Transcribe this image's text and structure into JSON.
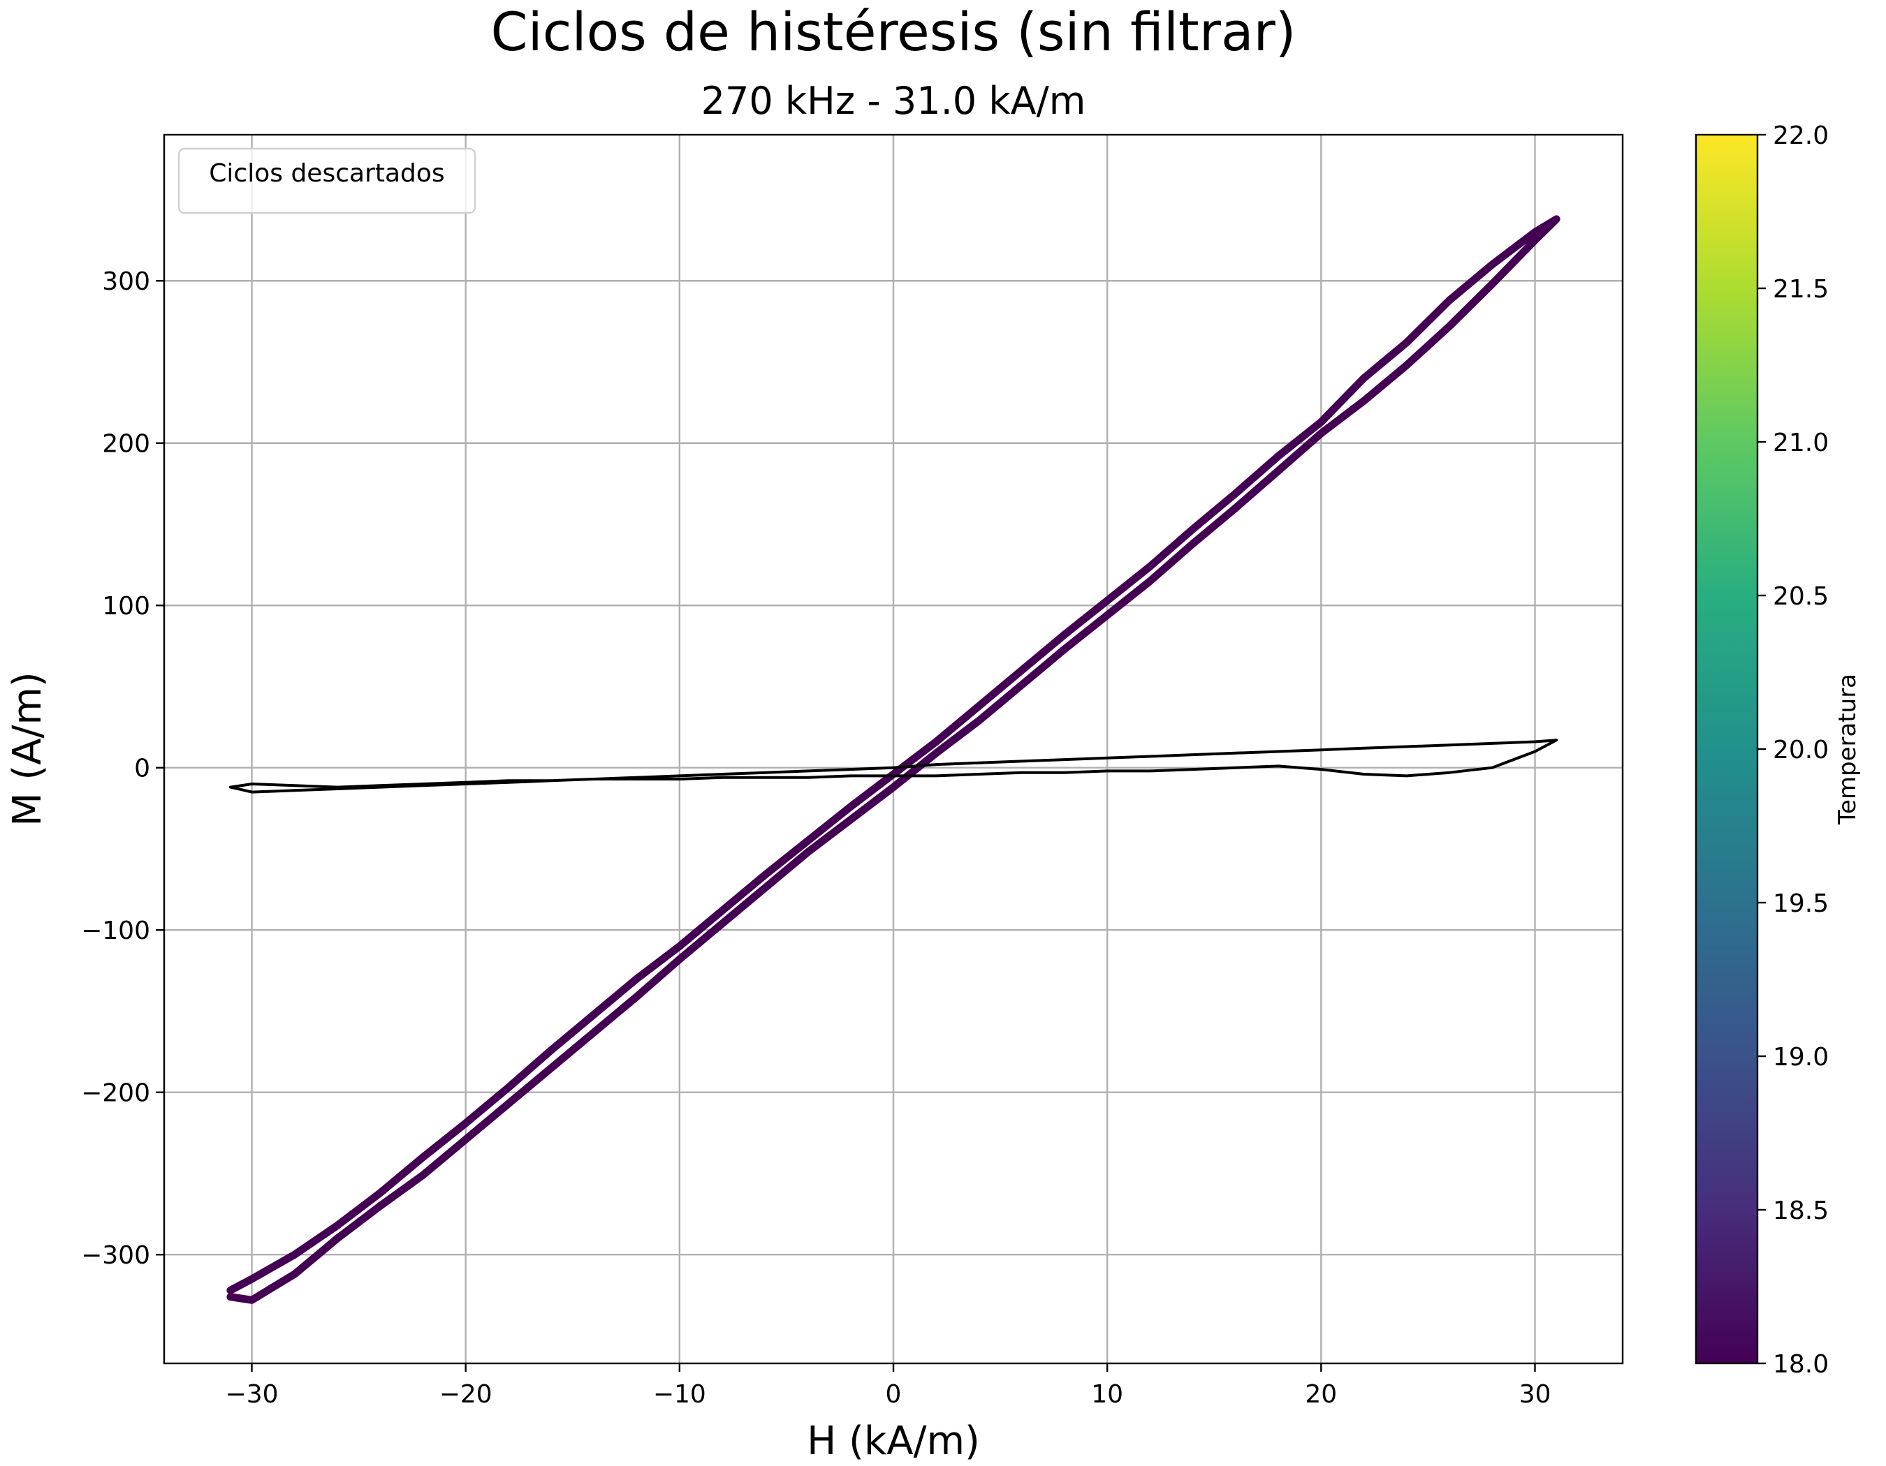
{
  "chart_data": {
    "type": "line",
    "title": "Ciclos de histéresis (sin filtrar)",
    "subtitle": "270 kHz - 31.0 kA/m",
    "xlabel": "H (kA/m)",
    "ylabel": "M (A/m)",
    "xlim": [
      -34.1,
      34.1
    ],
    "ylim": [
      -367,
      390
    ],
    "xticks": [
      -30,
      -20,
      -10,
      0,
      10,
      20,
      30
    ],
    "xtick_labels": [
      "−30",
      "−20",
      "−10",
      "0",
      "10",
      "20",
      "30"
    ],
    "yticks": [
      -300,
      -200,
      -100,
      0,
      100,
      200,
      300
    ],
    "ytick_labels": [
      "−300",
      "−200",
      "−100",
      "0",
      "100",
      "200",
      "300"
    ],
    "grid": true,
    "legend": {
      "placement": "upper-left",
      "title": "Ciclos descartados",
      "entries": []
    },
    "colorbar": {
      "label": "Temperatura",
      "colormap": "viridis",
      "range": [
        18.0,
        22.0
      ],
      "ticks": [
        18.0,
        18.5,
        19.0,
        19.5,
        20.0,
        20.5,
        21.0,
        21.5,
        22.0
      ],
      "tick_labels": [
        "18.0",
        "18.5",
        "19.0",
        "19.5",
        "20.0",
        "20.5",
        "21.0",
        "21.5",
        "22.0"
      ]
    },
    "series": [
      {
        "color": "#440154",
        "temperature": 18.0,
        "x": [
          -31.0,
          -30.0,
          -28.0,
          -26.0,
          -24.0,
          -22.0,
          -20.0,
          -18.0,
          -16.0,
          -14.0,
          -12.0,
          -10.0,
          -8.0,
          -6.0,
          -4.0,
          -2.0,
          0.0,
          2.0,
          4.0,
          6.0,
          8.0,
          10.0,
          12.0,
          14.0,
          16.0,
          18.0,
          20.0,
          22.0,
          24.0,
          26.0,
          28.0,
          30.0,
          31.0,
          30.0,
          28.0,
          26.0,
          24.0,
          22.0,
          20.0,
          18.0,
          16.0,
          14.0,
          12.0,
          10.0,
          8.0,
          6.0,
          4.0,
          2.0,
          0.0,
          -2.0,
          -4.0,
          -6.0,
          -8.0,
          -10.0,
          -12.0,
          -14.0,
          -16.0,
          -18.0,
          -20.0,
          -22.0,
          -24.0,
          -26.0,
          -28.0,
          -30.0,
          -31.0
        ],
        "y": [
          -322,
          -315,
          -300,
          -282,
          -262,
          -240,
          -219,
          -197,
          -174,
          -152,
          -130,
          -110,
          -88,
          -66,
          -45,
          -24,
          -4,
          16,
          38,
          60,
          82,
          103,
          124,
          147,
          169,
          192,
          213,
          240,
          262,
          288,
          310,
          330,
          338,
          325,
          298,
          272,
          248,
          226,
          206,
          183,
          160,
          138,
          115,
          94,
          73,
          51,
          29,
          9,
          -12,
          -32,
          -52,
          -74,
          -96,
          -118,
          -141,
          -163,
          -185,
          -207,
          -229,
          -251,
          -270,
          -290,
          -312,
          -328,
          -326
        ]
      },
      {
        "color": "#000000",
        "x": [
          -31.0,
          -30.0,
          -28.0,
          -26.0,
          -24.0,
          -22.0,
          -20.0,
          -18.0,
          -16.0,
          -14.0,
          -12.0,
          -10.0,
          -8.0,
          -6.0,
          -4.0,
          -2.0,
          0.0,
          2.0,
          4.0,
          6.0,
          8.0,
          10.0,
          12.0,
          14.0,
          16.0,
          18.0,
          20.0,
          22.0,
          24.0,
          26.0,
          28.0,
          30.0,
          31.0,
          30.0,
          28.0,
          26.0,
          24.0,
          22.0,
          20.0,
          18.0,
          16.0,
          14.0,
          12.0,
          10.0,
          8.0,
          6.0,
          4.0,
          2.0,
          0.0,
          -2.0,
          -4.0,
          -6.0,
          -8.0,
          -10.0,
          -12.0,
          -14.0,
          -16.0,
          -18.0,
          -20.0,
          -22.0,
          -24.0,
          -26.0,
          -28.0,
          -30.0,
          -31.0
        ],
        "y": [
          -12,
          -15,
          -14,
          -13,
          -12,
          -11,
          -10,
          -9,
          -8,
          -7,
          -6,
          -5,
          -4,
          -3,
          -2,
          -1,
          0,
          2,
          3,
          4,
          5,
          6,
          7,
          8,
          9,
          10,
          11,
          12,
          13,
          14,
          15,
          16,
          17,
          10,
          0,
          -3,
          -5,
          -4,
          -1,
          1,
          0,
          -1,
          -2,
          -2,
          -3,
          -3,
          -4,
          -5,
          -5,
          -5,
          -6,
          -6,
          -6,
          -7,
          -7,
          -7,
          -8,
          -8,
          -9,
          -10,
          -11,
          -12,
          -11,
          -10,
          -12
        ]
      }
    ]
  }
}
